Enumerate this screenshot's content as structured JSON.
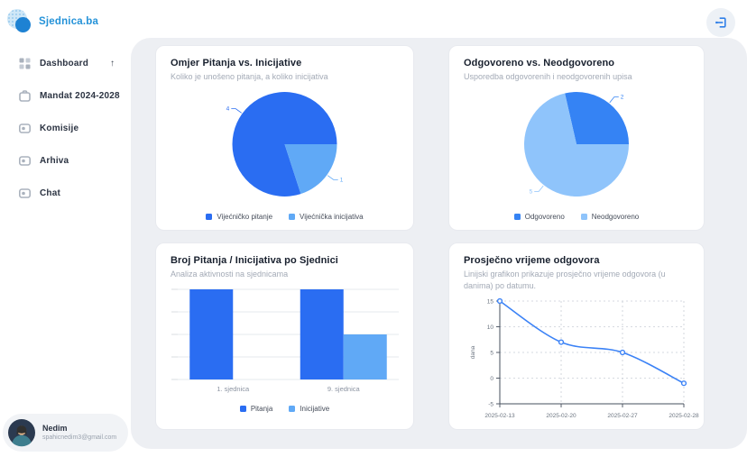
{
  "app": {
    "brand": "Sjednica.ba"
  },
  "sidebar": {
    "items": [
      {
        "label": "Dashboard",
        "suffix": "↑"
      },
      {
        "label": "Mandat 2024-2028"
      },
      {
        "label": "Komisije"
      },
      {
        "label": "Arhiva"
      },
      {
        "label": "Chat"
      }
    ],
    "user": {
      "name": "Nedim",
      "email": "spahicnedim3@gmail.com"
    }
  },
  "colors": {
    "brand_blue": "#2492d8",
    "primary_blue": "#2a6df2",
    "light_blue": "#60a9f6",
    "pie2_dark": "#3583f4",
    "pie2_light": "#8fc4fb",
    "line_blue": "#3b82f6",
    "panel_bg": "#edeff3"
  },
  "chart_data": [
    {
      "type": "pie",
      "title": "Omjer Pitanja vs. Inicijative",
      "subtitle": "Koliko je unošeno pitanja, a koliko inicijativa",
      "slices": [
        {
          "label": "Vijećničko pitanje",
          "value": 4,
          "color": "#2a6df2"
        },
        {
          "label": "Vijećnička inicijativa",
          "value": 1,
          "color": "#60a9f6"
        }
      ],
      "legend_position": "bottom"
    },
    {
      "type": "pie",
      "title": "Odgovoreno vs. Neodgovoreno",
      "subtitle": "Usporedba odgovorenih i neodgovorenih upisa",
      "slices": [
        {
          "label": "Odgovoreno",
          "value": 2,
          "color": "#3583f4"
        },
        {
          "label": "Neodgovoreno",
          "value": 5,
          "color": "#8fc4fb"
        }
      ],
      "legend_position": "bottom"
    },
    {
      "type": "bar",
      "title": "Broj Pitanja / Inicijativa po Sjednici",
      "subtitle": "Analiza aktivnosti na sjednicama",
      "categories": [
        "1. sjednica",
        "9. sjednica"
      ],
      "series": [
        {
          "name": "Pitanja",
          "color": "#2a6df2",
          "values": [
            2,
            2
          ]
        },
        {
          "name": "Inicijative",
          "color": "#60a9f6",
          "values": [
            0,
            1
          ]
        }
      ],
      "ylim": [
        0,
        2
      ],
      "grid": true,
      "legend_position": "bottom"
    },
    {
      "type": "line",
      "title": "Prosječno vrijeme odgovora",
      "subtitle": "Linijski grafikon prikazuje prosječno vrijeme odgovora (u danima) po datumu.",
      "x": [
        "2025-02-13",
        "2025-02-20",
        "2025-02-27",
        "2025-02-28"
      ],
      "values": [
        15,
        7,
        5,
        -1
      ],
      "ylabel": "dana",
      "yticks": [
        15,
        10,
        5,
        0,
        -5
      ],
      "ylim": [
        -5,
        15
      ],
      "color": "#3b82f6",
      "grid": true
    }
  ]
}
